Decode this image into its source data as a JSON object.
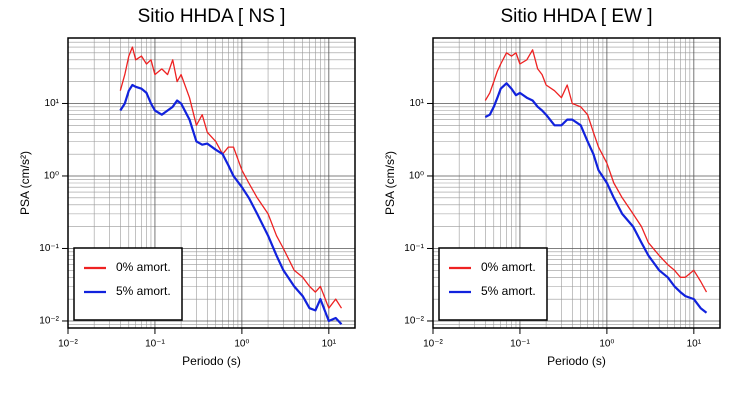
{
  "chart_data": [
    {
      "type": "line",
      "title": "Sitio HHDA [ NS ]",
      "x_label": "Periodo (s)",
      "y_label": "PSA (cm/s²)",
      "x_log": true,
      "y_log": true,
      "grid": true,
      "minor_grid": true,
      "legend_position": "lower left",
      "xlim": [
        0.01,
        20
      ],
      "ylim": [
        0.008,
        80
      ],
      "xticks": [
        {
          "value": 0.01,
          "label": "10⁻²"
        },
        {
          "value": 0.1,
          "label": "10⁻¹"
        },
        {
          "value": 1,
          "label": "10⁰"
        },
        {
          "value": 10,
          "label": "10¹"
        }
      ],
      "yticks": [
        {
          "value": 0.01,
          "label": "10⁻²"
        },
        {
          "value": 0.1,
          "label": "10⁻¹"
        },
        {
          "value": 1,
          "label": "10⁰"
        },
        {
          "value": 10,
          "label": "10¹"
        }
      ],
      "x": [
        0.04,
        0.045,
        0.05,
        0.055,
        0.06,
        0.07,
        0.08,
        0.09,
        0.1,
        0.12,
        0.14,
        0.16,
        0.18,
        0.2,
        0.25,
        0.3,
        0.35,
        0.4,
        0.5,
        0.6,
        0.7,
        0.8,
        1,
        1.2,
        1.5,
        2,
        2.5,
        3,
        4,
        5,
        6,
        7,
        8,
        10,
        12,
        14
      ],
      "series": [
        {
          "name": "0% amort.",
          "color": "#ee2222",
          "values": [
            15,
            25,
            45,
            60,
            40,
            45,
            35,
            40,
            25,
            30,
            25,
            40,
            20,
            25,
            12,
            5,
            7,
            4,
            3,
            2,
            2.5,
            2.5,
            1.2,
            0.8,
            0.5,
            0.3,
            0.15,
            0.1,
            0.05,
            0.04,
            0.03,
            0.025,
            0.03,
            0.015,
            0.02,
            0.015
          ]
        },
        {
          "name": "5% amort.",
          "color": "#1122dd",
          "values": [
            8,
            10,
            15,
            18,
            17,
            16,
            14,
            10,
            8,
            7,
            8,
            9,
            11,
            10,
            6,
            3,
            2.7,
            2.8,
            2.3,
            2,
            1.4,
            1,
            0.7,
            0.5,
            0.3,
            0.15,
            0.08,
            0.05,
            0.03,
            0.022,
            0.015,
            0.014,
            0.02,
            0.01,
            0.011,
            0.009
          ]
        }
      ]
    },
    {
      "type": "line",
      "title": "Sitio HHDA [ EW ]",
      "x_label": "Periodo (s)",
      "y_label": "PSA (cm/s²)",
      "x_log": true,
      "y_log": true,
      "grid": true,
      "minor_grid": true,
      "legend_position": "lower left",
      "xlim": [
        0.01,
        20
      ],
      "ylim": [
        0.008,
        80
      ],
      "xticks": [
        {
          "value": 0.01,
          "label": "10⁻²"
        },
        {
          "value": 0.1,
          "label": "10⁻¹"
        },
        {
          "value": 1,
          "label": "10⁰"
        },
        {
          "value": 10,
          "label": "10¹"
        }
      ],
      "yticks": [
        {
          "value": 0.01,
          "label": "10⁻²"
        },
        {
          "value": 0.1,
          "label": "10⁻¹"
        },
        {
          "value": 1,
          "label": "10⁰"
        },
        {
          "value": 10,
          "label": "10¹"
        }
      ],
      "x": [
        0.04,
        0.045,
        0.05,
        0.055,
        0.06,
        0.07,
        0.08,
        0.09,
        0.1,
        0.12,
        0.14,
        0.16,
        0.18,
        0.2,
        0.25,
        0.3,
        0.35,
        0.4,
        0.5,
        0.6,
        0.7,
        0.8,
        1,
        1.2,
        1.5,
        2,
        2.5,
        3,
        4,
        5,
        6,
        7,
        8,
        10,
        12,
        14
      ],
      "series": [
        {
          "name": "0% amort.",
          "color": "#ee2222",
          "values": [
            11,
            14,
            20,
            28,
            35,
            50,
            45,
            50,
            35,
            40,
            55,
            30,
            25,
            18,
            15,
            12,
            18,
            10,
            9,
            7,
            4,
            2.5,
            1.5,
            0.8,
            0.5,
            0.3,
            0.2,
            0.12,
            0.08,
            0.06,
            0.05,
            0.04,
            0.04,
            0.05,
            0.035,
            0.025
          ]
        },
        {
          "name": "5% amort.",
          "color": "#1122dd",
          "values": [
            6.5,
            7,
            9,
            12,
            16,
            19,
            16,
            13,
            14,
            12,
            11,
            9,
            8,
            7,
            5,
            5,
            6,
            6,
            5,
            3,
            2,
            1.2,
            0.8,
            0.5,
            0.3,
            0.2,
            0.12,
            0.08,
            0.05,
            0.04,
            0.03,
            0.025,
            0.022,
            0.02,
            0.015,
            0.013
          ]
        }
      ]
    }
  ]
}
